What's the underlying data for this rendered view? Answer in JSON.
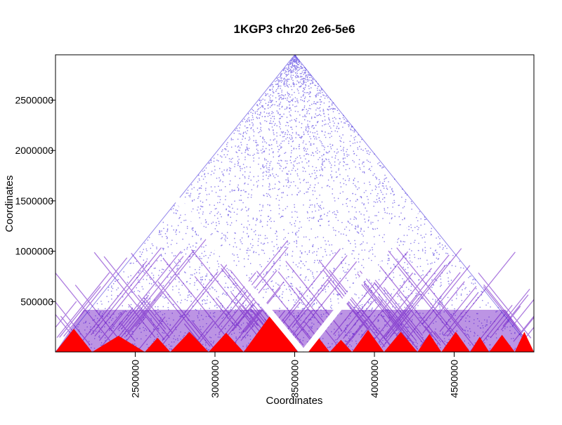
{
  "chart_data": {
    "type": "heatmap",
    "title": "1KGP3 chr20 2e6-5e6",
    "xlabel": "Coordinates",
    "ylabel": "Coordinates",
    "xlim": [
      2000000,
      5000000
    ],
    "ylim": [
      0,
      2950000
    ],
    "x_ticks": [
      {
        "value": 2500000,
        "label": "2500000"
      },
      {
        "value": 3000000,
        "label": "3000000"
      },
      {
        "value": 3500000,
        "label": "3500000"
      },
      {
        "value": 4000000,
        "label": "4000000"
      },
      {
        "value": 4500000,
        "label": "4500000"
      }
    ],
    "y_ticks": [
      {
        "value": 500000,
        "label": "500000"
      },
      {
        "value": 1000000,
        "label": "1000000"
      },
      {
        "value": 1500000,
        "label": "1500000"
      },
      {
        "value": 2000000,
        "label": "2000000"
      },
      {
        "value": 2500000,
        "label": "2500000"
      }
    ],
    "triangle": {
      "left_x": 2000000,
      "right_x": 5000000,
      "apex_x": 3500000,
      "apex_y": 2950000
    },
    "gaps": [
      {
        "from": [
          2760000,
          1520000
        ],
        "to": [
          3550000,
          0
        ]
      },
      {
        "from": [
          3560000,
          0
        ],
        "to": [
          4260000,
          1400000
        ]
      }
    ],
    "red_domains": [
      {
        "x_start": 2000000,
        "x_end": 2230000,
        "height": 230000
      },
      {
        "x_start": 2230000,
        "x_end": 2560000,
        "height": 160000
      },
      {
        "x_start": 2560000,
        "x_end": 2720000,
        "height": 140000
      },
      {
        "x_start": 2720000,
        "x_end": 2960000,
        "height": 200000
      },
      {
        "x_start": 2960000,
        "x_end": 3180000,
        "height": 190000
      },
      {
        "x_start": 3180000,
        "x_end": 3520000,
        "height": 370000
      },
      {
        "x_start": 3560000,
        "x_end": 3720000,
        "height": 160000
      },
      {
        "x_start": 3720000,
        "x_end": 3860000,
        "height": 120000
      },
      {
        "x_start": 3860000,
        "x_end": 4060000,
        "height": 220000
      },
      {
        "x_start": 4060000,
        "x_end": 4270000,
        "height": 200000
      },
      {
        "x_start": 4270000,
        "x_end": 4420000,
        "height": 180000
      },
      {
        "x_start": 4420000,
        "x_end": 4600000,
        "height": 200000
      },
      {
        "x_start": 4600000,
        "x_end": 4720000,
        "height": 150000
      },
      {
        "x_start": 4720000,
        "x_end": 4880000,
        "height": 170000
      },
      {
        "x_start": 4880000,
        "x_end": 5000000,
        "height": 200000
      }
    ],
    "colors": {
      "high": "#ff0000",
      "mid": "#6a11c4",
      "low": "#2a0fd8",
      "background": "#ffffff",
      "axis": "#000000"
    },
    "grid": false,
    "legend": "none"
  }
}
